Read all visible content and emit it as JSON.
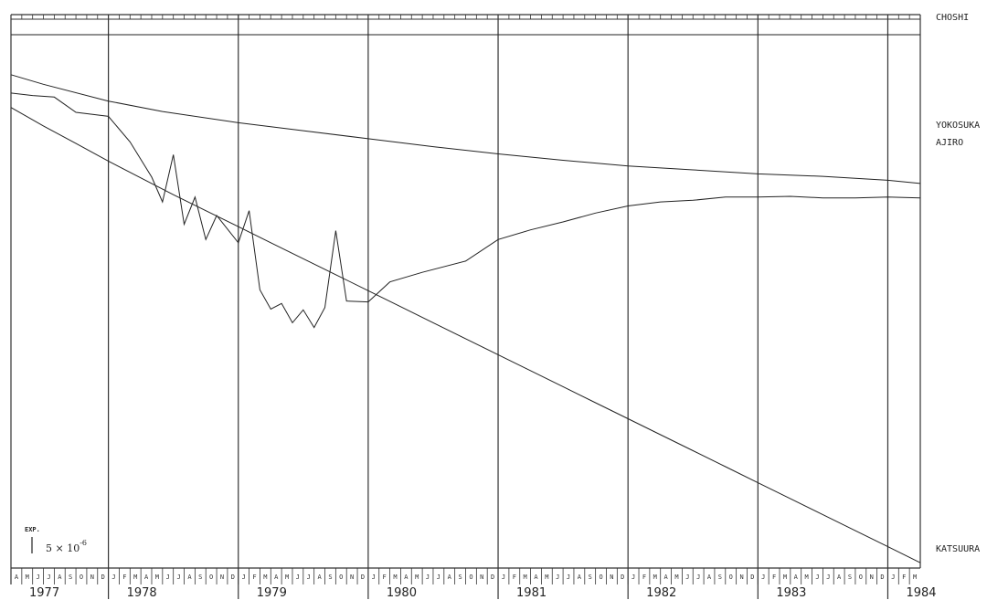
{
  "chart_data": {
    "type": "line",
    "x_start": "1977-04",
    "x_end": "1984-04",
    "years": [
      "1977",
      "1978",
      "1979",
      "1980",
      "1981",
      "1982",
      "1983",
      "1984"
    ],
    "month_letters": [
      "J",
      "F",
      "M",
      "A",
      "M",
      "J",
      "J",
      "A",
      "S",
      "O",
      "N",
      "D"
    ],
    "scale_bar": {
      "title": "EXP.",
      "value": "5 × 10",
      "exponent": "-6"
    },
    "series": [
      {
        "name": "CHOSHI",
        "points": [
          [
            "1977-04",
            0
          ],
          [
            "1984-04",
            0
          ]
        ]
      },
      {
        "name": "YOKOSUKA",
        "points": [
          [
            "1977-04",
            5
          ],
          [
            "1977-07",
            6.2
          ],
          [
            "1978-01",
            8.3
          ],
          [
            "1978-06",
            9.6
          ],
          [
            "1979-01",
            11
          ],
          [
            "1979-07",
            12
          ],
          [
            "1980-01",
            13
          ],
          [
            "1980-07",
            14
          ],
          [
            "1981-01",
            14.9
          ],
          [
            "1981-07",
            15.7
          ],
          [
            "1982-01",
            16.4
          ],
          [
            "1982-07",
            16.9
          ],
          [
            "1983-01",
            17.4
          ],
          [
            "1983-07",
            17.7
          ],
          [
            "1984-01",
            18.2
          ],
          [
            "1984-04",
            18.6
          ]
        ]
      },
      {
        "name": "AJIRO",
        "points": [
          [
            "1977-04",
            7.3
          ],
          [
            "1977-06",
            7.6
          ],
          [
            "1977-08",
            7.8
          ],
          [
            "1977-10",
            9.7
          ],
          [
            "1978-01",
            10.2
          ],
          [
            "1978-03",
            13.4
          ],
          [
            "1978-05",
            17.8
          ],
          [
            "1978-06",
            20.9
          ],
          [
            "1978-07",
            15
          ],
          [
            "1978-08",
            23.7
          ],
          [
            "1978-09",
            20.3
          ],
          [
            "1978-10",
            25.6
          ],
          [
            "1978-11",
            22.6
          ],
          [
            "1979-01",
            26
          ],
          [
            "1979-02",
            22
          ],
          [
            "1979-03",
            31.9
          ],
          [
            "1979-04",
            34.3
          ],
          [
            "1979-05",
            33.6
          ],
          [
            "1979-06",
            36
          ],
          [
            "1979-07",
            34.4
          ],
          [
            "1979-08",
            36.6
          ],
          [
            "1979-09",
            34.1
          ],
          [
            "1979-10",
            24.5
          ],
          [
            "1979-11",
            33.3
          ],
          [
            "1980-01",
            33.4
          ],
          [
            "1980-03",
            30.9
          ],
          [
            "1980-06",
            29.7
          ],
          [
            "1980-10",
            28.3
          ],
          [
            "1981-01",
            25.6
          ],
          [
            "1981-04",
            24.4
          ],
          [
            "1981-07",
            23.4
          ],
          [
            "1981-10",
            22.3
          ],
          [
            "1982-01",
            21.4
          ],
          [
            "1982-04",
            20.9
          ],
          [
            "1982-07",
            20.7
          ],
          [
            "1982-10",
            20.3
          ],
          [
            "1983-01",
            20.3
          ],
          [
            "1983-04",
            20.2
          ],
          [
            "1983-07",
            20.4
          ],
          [
            "1983-10",
            20.4
          ],
          [
            "1984-01",
            20.3
          ],
          [
            "1984-04",
            20.4
          ]
        ]
      },
      {
        "name": "KATSUURA",
        "points": [
          [
            "1977-04",
            9.1
          ],
          [
            "1977-07",
            11.4
          ],
          [
            "1977-10",
            13.6
          ],
          [
            "1978-01",
            15.8
          ],
          [
            "1978-04",
            17.9
          ],
          [
            "1978-07",
            20
          ],
          [
            "1978-10",
            22
          ],
          [
            "1979-01",
            24
          ],
          [
            "1979-04",
            26
          ],
          [
            "1979-07",
            28
          ],
          [
            "1979-10",
            30
          ],
          [
            "1980-01",
            32
          ],
          [
            "1980-04",
            34
          ],
          [
            "1980-07",
            36
          ],
          [
            "1980-10",
            38
          ],
          [
            "1981-01",
            40
          ],
          [
            "1981-04",
            42
          ],
          [
            "1981-07",
            44
          ],
          [
            "1981-10",
            46
          ],
          [
            "1982-01",
            48
          ],
          [
            "1982-04",
            50
          ],
          [
            "1982-07",
            52
          ],
          [
            "1982-10",
            54
          ],
          [
            "1983-01",
            56
          ],
          [
            "1983-04",
            58
          ],
          [
            "1983-07",
            60
          ],
          [
            "1983-10",
            62
          ],
          [
            "1984-01",
            64
          ],
          [
            "1984-04",
            66
          ]
        ]
      }
    ]
  }
}
